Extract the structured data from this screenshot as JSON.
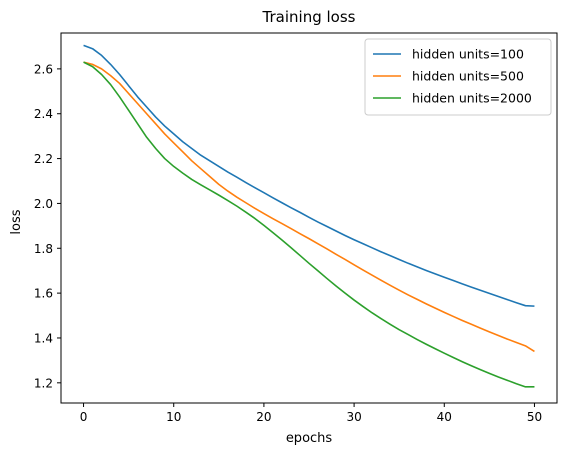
{
  "chart_data": {
    "type": "line",
    "title": "Training loss",
    "xlabel": "epochs",
    "ylabel": "loss",
    "xlim": [
      -2.5,
      52.5
    ],
    "ylim": [
      1.11,
      2.76
    ],
    "xticks": [
      0,
      10,
      20,
      30,
      40,
      50
    ],
    "yticks": [
      1.2,
      1.4,
      1.6,
      1.8,
      2.0,
      2.2,
      2.4,
      2.6
    ],
    "ytick_labels": [
      "1.2",
      "1.4",
      "1.6",
      "1.8",
      "2.0",
      "2.2",
      "2.4",
      "2.6"
    ],
    "grid": false,
    "legend_position": "top-right",
    "x": [
      0,
      1,
      2,
      3,
      4,
      5,
      6,
      7,
      8,
      9,
      10,
      11,
      12,
      13,
      14,
      15,
      16,
      17,
      18,
      19,
      20,
      21,
      22,
      23,
      24,
      25,
      26,
      27,
      28,
      29,
      30,
      31,
      32,
      33,
      34,
      35,
      36,
      37,
      38,
      39,
      40,
      41,
      42,
      43,
      44,
      45,
      46,
      47,
      48,
      49,
      50
    ],
    "series": [
      {
        "name": "hidden units=100",
        "color": "#1f77b4",
        "values": [
          2.705,
          2.69,
          2.66,
          2.62,
          2.575,
          2.525,
          2.475,
          2.43,
          2.385,
          2.345,
          2.31,
          2.275,
          2.245,
          2.215,
          2.19,
          2.165,
          2.14,
          2.117,
          2.093,
          2.07,
          2.048,
          2.025,
          2.003,
          1.981,
          1.96,
          1.938,
          1.917,
          1.897,
          1.877,
          1.857,
          1.838,
          1.82,
          1.802,
          1.784,
          1.767,
          1.75,
          1.733,
          1.717,
          1.701,
          1.686,
          1.671,
          1.656,
          1.641,
          1.627,
          1.613,
          1.599,
          1.585,
          1.571,
          1.557,
          1.544,
          1.542
        ]
      },
      {
        "name": "hidden units=500",
        "color": "#ff7f0e",
        "values": [
          2.63,
          2.62,
          2.6,
          2.57,
          2.535,
          2.49,
          2.445,
          2.4,
          2.355,
          2.31,
          2.27,
          2.23,
          2.19,
          2.155,
          2.12,
          2.085,
          2.055,
          2.028,
          2.003,
          1.978,
          1.955,
          1.932,
          1.91,
          1.888,
          1.865,
          1.843,
          1.82,
          1.797,
          1.773,
          1.75,
          1.726,
          1.703,
          1.68,
          1.657,
          1.635,
          1.613,
          1.592,
          1.572,
          1.552,
          1.533,
          1.514,
          1.496,
          1.478,
          1.461,
          1.444,
          1.427,
          1.411,
          1.395,
          1.38,
          1.365,
          1.34
        ]
      },
      {
        "name": "hidden units=2000",
        "color": "#2ca02c",
        "values": [
          2.63,
          2.61,
          2.575,
          2.53,
          2.475,
          2.415,
          2.355,
          2.295,
          2.245,
          2.2,
          2.165,
          2.135,
          2.107,
          2.083,
          2.06,
          2.037,
          2.013,
          1.988,
          1.961,
          1.933,
          1.902,
          1.87,
          1.837,
          1.803,
          1.768,
          1.733,
          1.699,
          1.665,
          1.632,
          1.6,
          1.569,
          1.54,
          1.512,
          1.486,
          1.461,
          1.437,
          1.415,
          1.393,
          1.372,
          1.352,
          1.332,
          1.313,
          1.294,
          1.276,
          1.259,
          1.242,
          1.226,
          1.211,
          1.196,
          1.182,
          1.182
        ]
      }
    ]
  }
}
